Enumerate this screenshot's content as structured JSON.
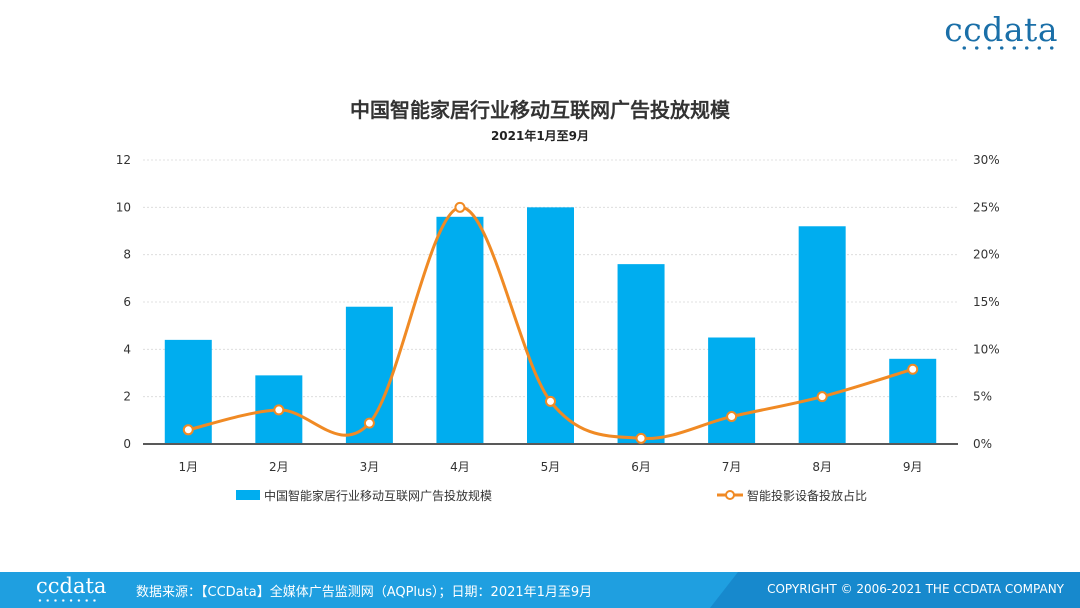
{
  "brand": {
    "logo_text": "ccdata"
  },
  "footer": {
    "logo_text": "ccdata",
    "source": "数据来源：【CCData】全媒体广告监测网（AQPlus）；日期：2021年1月至9月",
    "copyright": "COPYRIGHT © 2006-2021 THE CCDATA COMPANY"
  },
  "colors": {
    "bar": "#00adef",
    "line": "#f08a24",
    "footer": "#1f9fe0"
  },
  "chart_data": {
    "type": "bar+line",
    "title": "中国智能家居行业移动互联网广告投放规模",
    "subtitle": "2021年1月至9月",
    "categories": [
      "1月",
      "2月",
      "3月",
      "4月",
      "5月",
      "6月",
      "7月",
      "8月",
      "9月"
    ],
    "series": [
      {
        "name": "中国智能家居行业移动互联网广告投放规模",
        "type": "bar",
        "axis": "left",
        "values": [
          4.4,
          2.9,
          5.8,
          9.6,
          10.0,
          7.6,
          4.5,
          9.2,
          3.6
        ]
      },
      {
        "name": "智能投影设备投放占比",
        "type": "line",
        "axis": "right",
        "values": [
          1.5,
          3.6,
          2.2,
          25.0,
          4.5,
          0.6,
          2.9,
          5.0,
          7.9
        ]
      }
    ],
    "y_left": {
      "min": 0,
      "max": 12,
      "ticks": [
        "0",
        "2",
        "4",
        "6",
        "8",
        "10",
        "12"
      ]
    },
    "y_right": {
      "min": 0,
      "max": 30,
      "ticks": [
        "0%",
        "5%",
        "10%",
        "15%",
        "20%",
        "25%",
        "30%"
      ]
    },
    "grid": true,
    "legend_position": "bottom"
  }
}
